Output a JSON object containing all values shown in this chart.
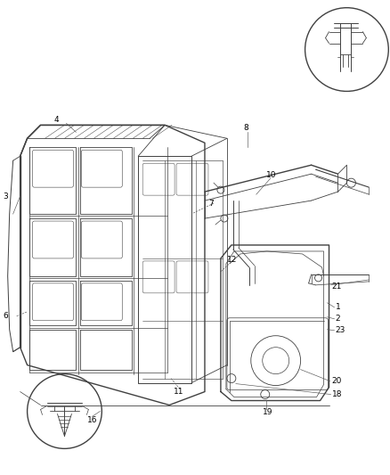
{
  "bg_color": "#ffffff",
  "line_color": "#404040",
  "label_color": "#000000",
  "fig_width": 4.38,
  "fig_height": 5.33,
  "dpi": 100,
  "label_fs": 6.5,
  "lw_main": 1.0,
  "lw_thin": 0.55,
  "lw_leader": 0.45
}
